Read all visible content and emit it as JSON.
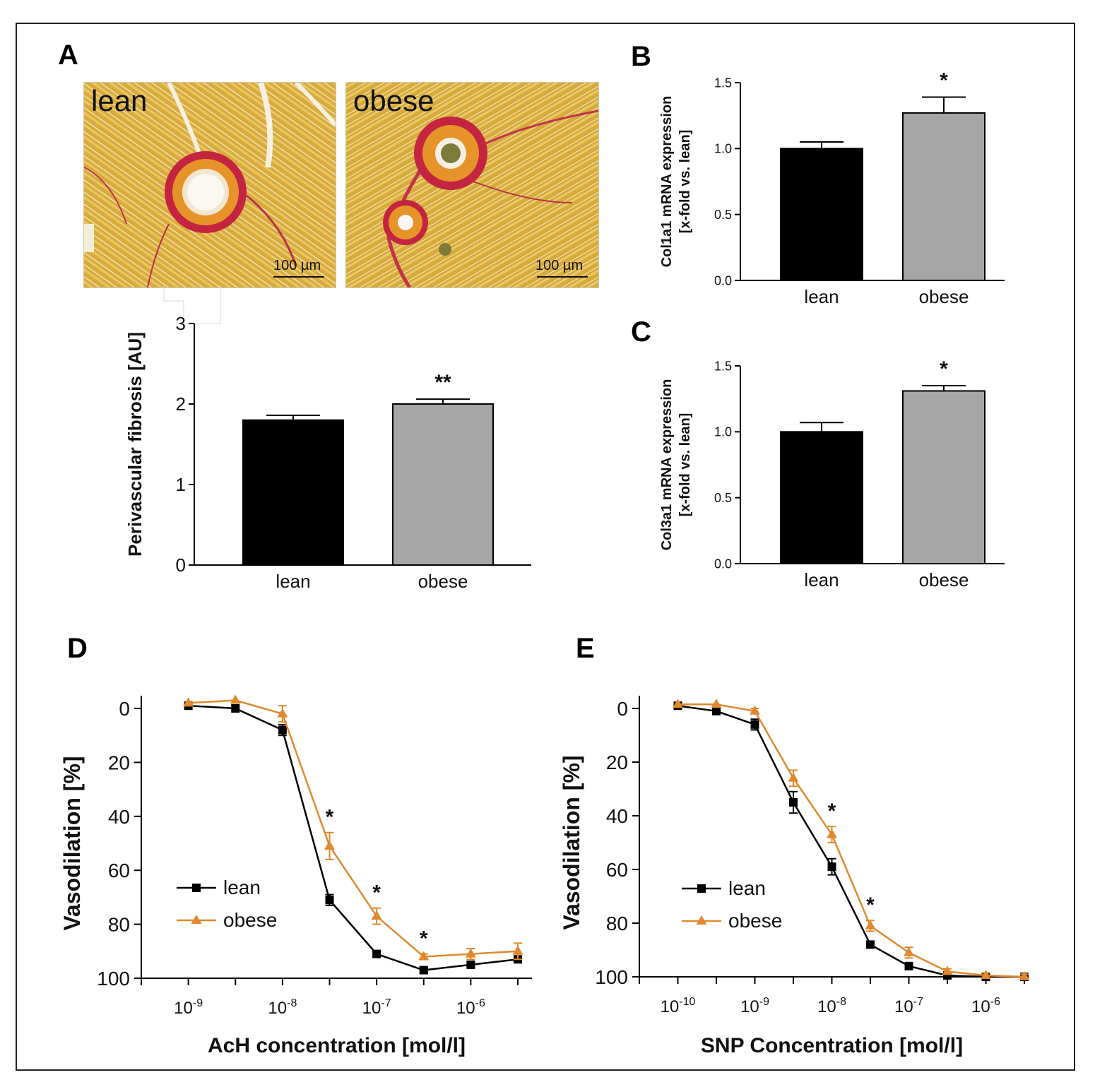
{
  "panels": {
    "A": "A",
    "B": "B",
    "C": "C",
    "D": "D",
    "E": "E"
  },
  "histology": {
    "lean_label": "lean",
    "obese_label": "obese",
    "scale_bar": "100 µm"
  },
  "chart_data": [
    {
      "id": "A",
      "type": "bar",
      "title": "",
      "categories": [
        "lean",
        "obese"
      ],
      "values": [
        1.8,
        2.0
      ],
      "errors": [
        0.06,
        0.06
      ],
      "colors": [
        "#000000",
        "#a6a6a6"
      ],
      "significance": [
        "",
        "**"
      ],
      "xlabel": "",
      "ylabel": "Perivascular fibrosis [AU]",
      "ylim": [
        0,
        3
      ],
      "yticks": [
        "0",
        "1",
        "2",
        "3"
      ]
    },
    {
      "id": "B",
      "type": "bar",
      "title": "",
      "categories": [
        "lean",
        "obese"
      ],
      "values": [
        1.0,
        1.27
      ],
      "errors": [
        0.05,
        0.12
      ],
      "colors": [
        "#000000",
        "#a6a6a6"
      ],
      "significance": [
        "",
        "*"
      ],
      "xlabel": "",
      "ylabel": "Col1a1 mRNA expression",
      "ylabel2": "[x-fold vs. lean]",
      "ylim": [
        0,
        1.5
      ],
      "yticks": [
        "0.0",
        "0.5",
        "1.0",
        "1.5"
      ]
    },
    {
      "id": "C",
      "type": "bar",
      "title": "",
      "categories": [
        "lean",
        "obese"
      ],
      "values": [
        1.0,
        1.31
      ],
      "errors": [
        0.07,
        0.04
      ],
      "colors": [
        "#000000",
        "#a6a6a6"
      ],
      "significance": [
        "",
        "*"
      ],
      "xlabel": "",
      "ylabel": "Col3a1 mRNA expression",
      "ylabel2": "[x-fold vs. lean]",
      "ylim": [
        0,
        1.5
      ],
      "yticks": [
        "0.0",
        "0.5",
        "1.0",
        "1.5"
      ]
    },
    {
      "id": "D",
      "type": "line",
      "title": "",
      "xlabel": "AcH concentration [mol/l]",
      "ylabel": "Vasodilation [%]",
      "xscale": "log10",
      "xlim": [
        -9.5,
        -5.35
      ],
      "ylim": [
        0,
        100
      ],
      "y_inverted": true,
      "xticks": [
        -9,
        -8,
        -7,
        -6
      ],
      "yticks": [
        "0",
        "20",
        "40",
        "60",
        "80",
        "100"
      ],
      "legend_position": "middle-left",
      "series": [
        {
          "name": "lean",
          "color": "#000000",
          "marker": "square",
          "x": [
            -9,
            -8.5,
            -8,
            -7.5,
            -7,
            -6.5,
            -6,
            -5.5
          ],
          "y": [
            -1,
            0,
            8,
            71,
            91,
            97,
            95,
            93
          ],
          "err": [
            0,
            0,
            2,
            2,
            1,
            1,
            1,
            1
          ]
        },
        {
          "name": "obese",
          "color": "#e0892e",
          "marker": "triangle",
          "x": [
            -9,
            -8.5,
            -8,
            -7.5,
            -7,
            -6.5,
            -6,
            -5.5
          ],
          "y": [
            -2,
            -3,
            2,
            51,
            77,
            92,
            91,
            90
          ],
          "err": [
            0,
            0,
            3,
            5,
            3,
            1,
            2,
            3
          ]
        }
      ],
      "significance": [
        {
          "x": -7.5,
          "label": "*"
        },
        {
          "x": -7,
          "label": "*"
        },
        {
          "x": -6.5,
          "label": "*"
        }
      ]
    },
    {
      "id": "E",
      "type": "line",
      "title": "",
      "xlabel": "SNP Concentration [mol/l]",
      "ylabel": "Vasodilation [%]",
      "xscale": "log10",
      "xlim": [
        -10.5,
        -5.5
      ],
      "ylim": [
        0,
        100
      ],
      "y_inverted": true,
      "xticks": [
        -10,
        -9,
        -8,
        -7,
        -6
      ],
      "yticks": [
        "0",
        "20",
        "40",
        "60",
        "80",
        "100"
      ],
      "legend_position": "middle-left",
      "series": [
        {
          "name": "lean",
          "color": "#000000",
          "marker": "square",
          "x": [
            -10,
            -9.5,
            -9,
            -8.5,
            -8,
            -7.5,
            -7,
            -6.5,
            -6,
            -5.5
          ],
          "y": [
            -1,
            1,
            6,
            35,
            59,
            88,
            96,
            99.5,
            100,
            100
          ],
          "err": [
            0,
            1,
            2,
            4,
            3,
            1,
            1,
            1,
            1,
            1
          ]
        },
        {
          "name": "obese",
          "color": "#e0892e",
          "marker": "triangle",
          "x": [
            -10,
            -9.5,
            -9,
            -8.5,
            -8,
            -7.5,
            -7,
            -6.5,
            -6,
            -5.5
          ],
          "y": [
            -1.5,
            -1.5,
            1,
            26,
            47,
            81,
            91,
            98,
            99.5,
            100
          ],
          "err": [
            0,
            0,
            1,
            3,
            3,
            2,
            2,
            1,
            1,
            1
          ]
        }
      ],
      "significance": [
        {
          "x": -8,
          "label": "*"
        },
        {
          "x": -7.5,
          "label": "*"
        }
      ]
    }
  ]
}
